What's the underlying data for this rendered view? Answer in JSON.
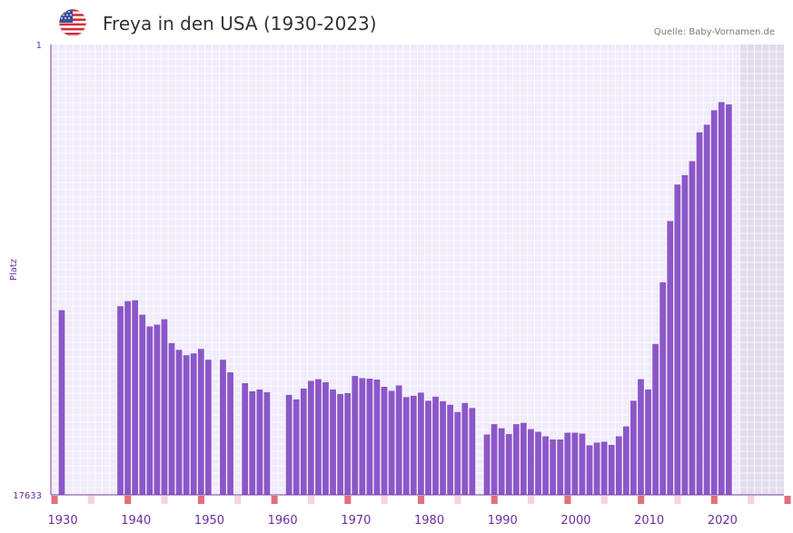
{
  "header": {
    "title": "Freya in den USA (1930-2023)",
    "source": "Quelle: Baby-Vornamen.de",
    "flag_icon": "us-flag-icon"
  },
  "colors": {
    "bar": "#8b57c8",
    "plot_bg": "#f0ecfa",
    "future_bg": "#e2dcec",
    "grid": "#ffffff",
    "axis": "#7b3fa0",
    "tick_label": "#6a2fa0",
    "marker_strong": "#e0707a",
    "marker_light": "#f6d3da"
  },
  "chart_data": {
    "type": "bar",
    "title": "Freya in den USA (1930-2023)",
    "xlabel": "",
    "ylabel": "Platz",
    "y_tick_labels": [
      "1",
      "17633"
    ],
    "y_axis_note": "rank axis: rank 1 at top, 17633 at bottom",
    "x_tick_labels": [
      "1930",
      "1940",
      "1950",
      "1960",
      "1970",
      "1980",
      "1990",
      "2000",
      "2010",
      "2020"
    ],
    "x_range": [
      1929,
      2029
    ],
    "years": [
      1930,
      1931,
      1932,
      1933,
      1934,
      1935,
      1936,
      1937,
      1938,
      1939,
      1940,
      1941,
      1942,
      1943,
      1944,
      1945,
      1946,
      1947,
      1948,
      1949,
      1950,
      1951,
      1952,
      1953,
      1954,
      1955,
      1956,
      1957,
      1958,
      1959,
      1960,
      1961,
      1962,
      1963,
      1964,
      1965,
      1966,
      1967,
      1968,
      1969,
      1970,
      1971,
      1972,
      1973,
      1974,
      1975,
      1976,
      1977,
      1978,
      1979,
      1980,
      1981,
      1982,
      1983,
      1984,
      1985,
      1986,
      1987,
      1988,
      1989,
      1990,
      1991,
      1992,
      1993,
      1994,
      1995,
      1996,
      1997,
      1998,
      1999,
      2000,
      2001,
      2002,
      2003,
      2004,
      2005,
      2006,
      2007,
      2008,
      2009,
      2010,
      2011,
      2012,
      2013,
      2014,
      2015,
      2016,
      2017,
      2018,
      2019,
      2020,
      2021,
      2022,
      2023
    ],
    "bar_fraction": [
      0.41,
      null,
      null,
      null,
      null,
      null,
      null,
      null,
      0.419,
      0.43,
      0.432,
      0.4,
      0.374,
      0.378,
      0.39,
      0.337,
      0.322,
      0.31,
      0.314,
      0.324,
      0.3,
      null,
      0.3,
      0.272,
      null,
      0.248,
      0.23,
      0.234,
      0.228,
      null,
      null,
      0.222,
      0.212,
      0.236,
      0.253,
      0.257,
      0.25,
      0.234,
      0.224,
      0.226,
      0.264,
      0.259,
      0.258,
      0.256,
      0.24,
      0.231,
      0.243,
      0.217,
      0.22,
      0.227,
      0.209,
      0.218,
      0.208,
      0.2,
      0.184,
      0.204,
      0.193,
      null,
      0.134,
      0.157,
      0.148,
      0.135,
      0.157,
      0.16,
      0.146,
      0.14,
      0.13,
      0.123,
      0.123,
      0.138,
      0.138,
      0.136,
      0.11,
      0.116,
      0.118,
      0.111,
      0.13,
      0.152,
      0.209,
      0.257,
      0.234,
      0.335,
      0.472,
      0.608,
      0.689,
      0.71,
      0.741,
      0.805,
      0.822,
      0.854,
      0.872,
      0.867,
      null
    ],
    "future_years_from": 2023,
    "year_markers": [
      {
        "year": 1929,
        "style": "strong"
      },
      {
        "year": 1934,
        "style": "light"
      },
      {
        "year": 1939,
        "style": "strong"
      },
      {
        "year": 1944,
        "style": "light"
      },
      {
        "year": 1949,
        "style": "strong"
      },
      {
        "year": 1954,
        "style": "light"
      },
      {
        "year": 1959,
        "style": "strong"
      },
      {
        "year": 1964,
        "style": "light"
      },
      {
        "year": 1969,
        "style": "strong"
      },
      {
        "year": 1974,
        "style": "light"
      },
      {
        "year": 1979,
        "style": "strong"
      },
      {
        "year": 1984,
        "style": "light"
      },
      {
        "year": 1989,
        "style": "strong"
      },
      {
        "year": 1994,
        "style": "light"
      },
      {
        "year": 1999,
        "style": "strong"
      },
      {
        "year": 2004,
        "style": "light"
      },
      {
        "year": 2009,
        "style": "strong"
      },
      {
        "year": 2014,
        "style": "light"
      },
      {
        "year": 2019,
        "style": "strong"
      },
      {
        "year": 2024,
        "style": "light"
      },
      {
        "year": 2029,
        "style": "strong"
      }
    ]
  }
}
